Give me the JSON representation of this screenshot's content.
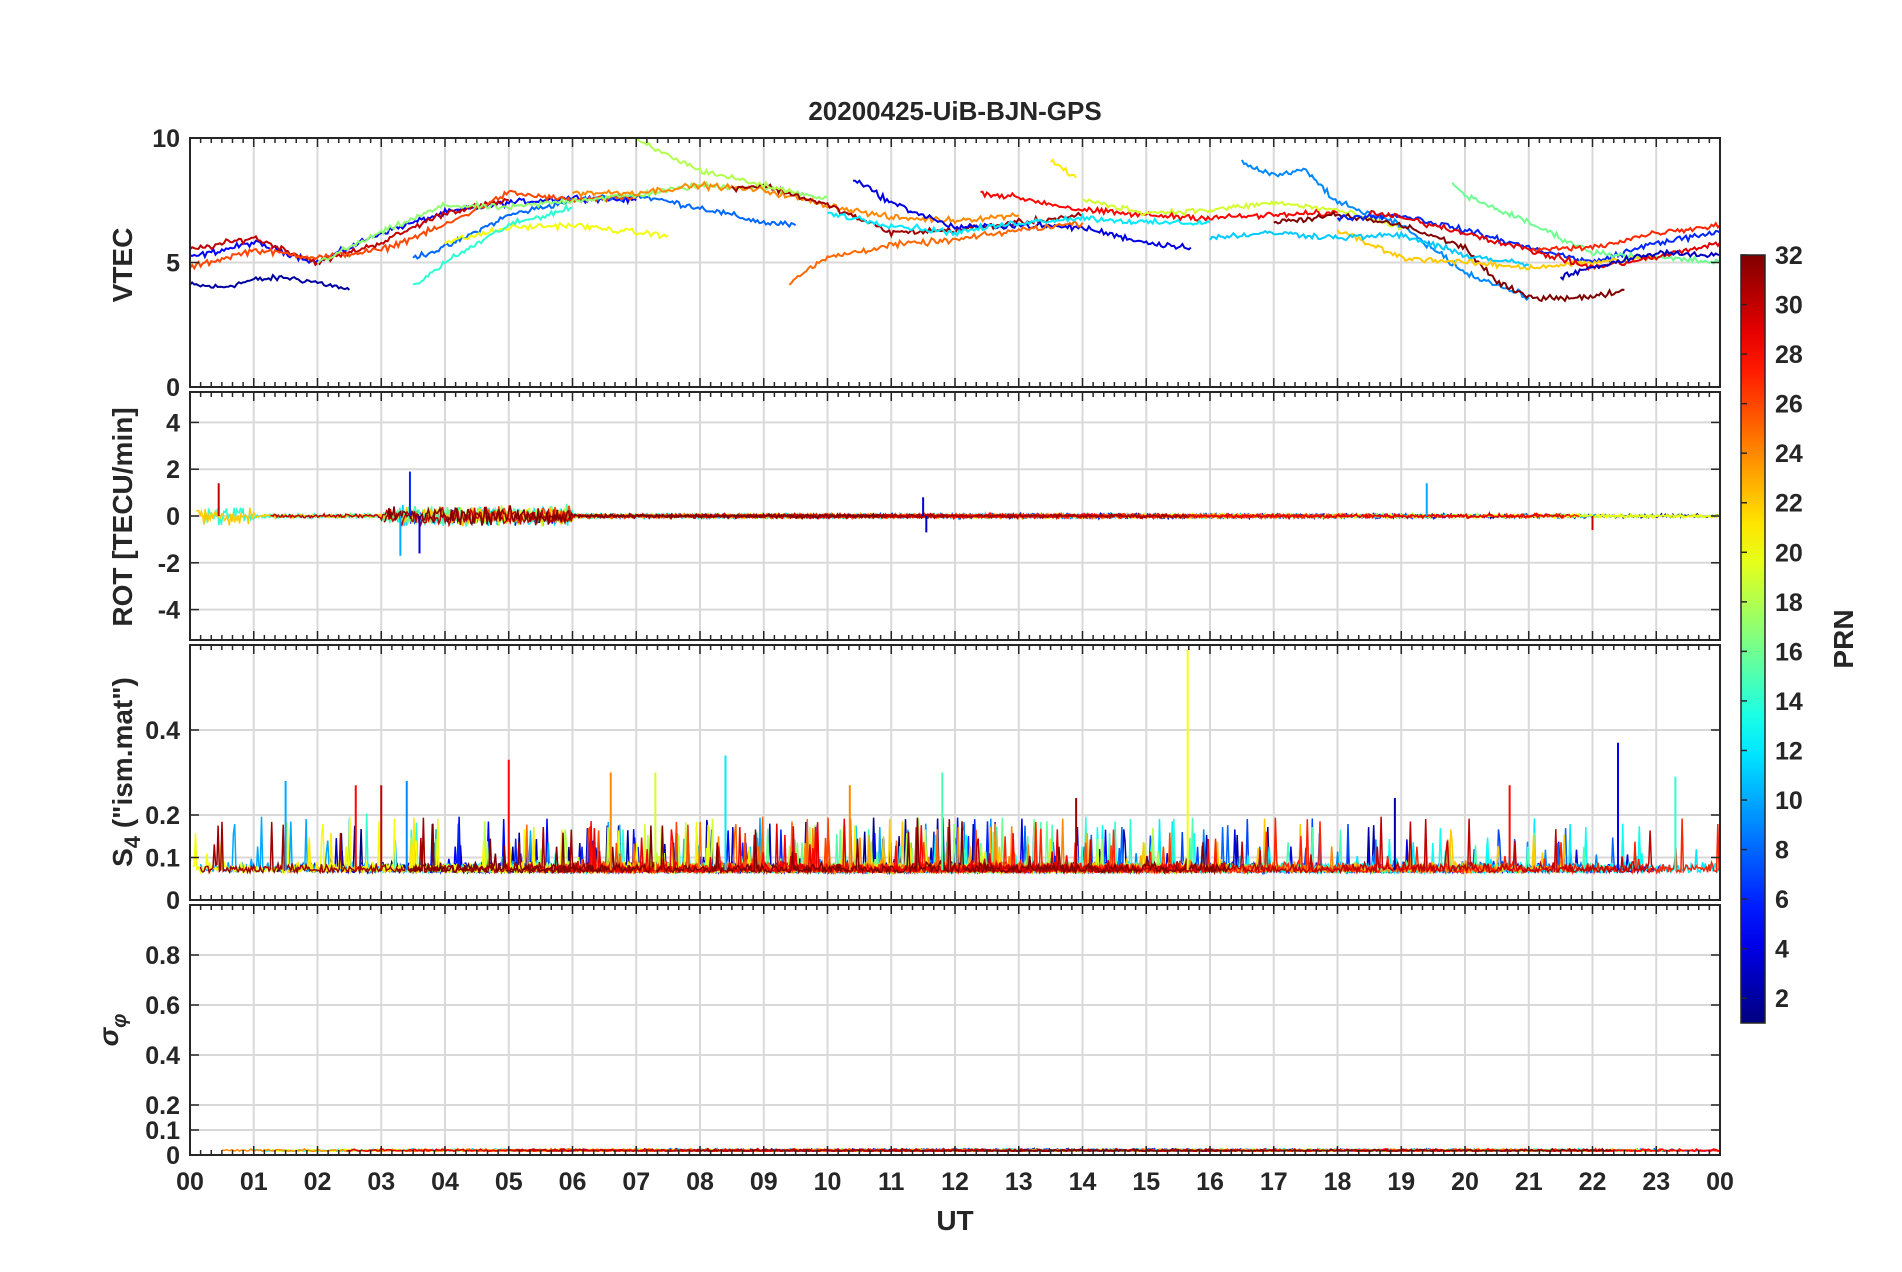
{
  "chart_data": {
    "type": "line",
    "title": "20200425-UiB-BJN-GPS",
    "xlabel": "UT",
    "x_tick_labels": [
      "00",
      "01",
      "02",
      "03",
      "04",
      "05",
      "06",
      "07",
      "08",
      "09",
      "10",
      "11",
      "12",
      "13",
      "14",
      "15",
      "16",
      "17",
      "18",
      "19",
      "20",
      "21",
      "22",
      "23",
      "00"
    ],
    "xlim": [
      0,
      24
    ],
    "grid": true,
    "colorbar": {
      "label": "PRN",
      "range": [
        1,
        32
      ],
      "tick_values": [
        2,
        4,
        6,
        8,
        10,
        12,
        14,
        16,
        18,
        20,
        22,
        24,
        26,
        28,
        30,
        32
      ],
      "tick_labels": [
        "2",
        "4",
        "6",
        "8",
        "10",
        "12",
        "14",
        "16",
        "18",
        "20",
        "22",
        "24",
        "26",
        "28",
        "30",
        "32"
      ],
      "colormap": "jet"
    },
    "panels": [
      {
        "id": "vtec",
        "ylabel": "VTEC",
        "ylim": [
          0,
          10
        ],
        "y_ticks": [
          0,
          5,
          10
        ],
        "y_tick_labels": [
          "0",
          "5",
          "10"
        ],
        "series_trend": [
          {
            "prn": 2,
            "x": [
              0,
              0.5,
              1,
              1.5,
              2,
              2.5
            ],
            "y": [
              4.1,
              4.0,
              4.3,
              4.4,
              4.2,
              3.9
            ]
          },
          {
            "prn": 5,
            "x": [
              0,
              1,
              2,
              3,
              4,
              5,
              6,
              7
            ],
            "y": [
              5.2,
              5.8,
              5.0,
              6.2,
              7.0,
              7.4,
              7.6,
              7.5
            ]
          },
          {
            "prn": 8,
            "x": [
              3.5,
              4,
              5,
              6,
              7,
              8,
              9,
              9.5
            ],
            "y": [
              5.2,
              5.6,
              6.9,
              7.5,
              7.7,
              7.2,
              6.6,
              6.5
            ]
          },
          {
            "prn": 30,
            "x": [
              0,
              1,
              2,
              3,
              4,
              5
            ],
            "y": [
              5.5,
              6.0,
              5.0,
              5.8,
              7.0,
              7.5
            ]
          },
          {
            "prn": 26,
            "x": [
              0,
              1,
              2,
              3,
              4,
              5,
              6,
              7
            ],
            "y": [
              4.8,
              5.5,
              5.2,
              5.5,
              6.5,
              7.8,
              7.5,
              7.6
            ]
          },
          {
            "prn": 17,
            "x": [
              2,
              3,
              4,
              5,
              6,
              7,
              8,
              9,
              10
            ],
            "y": [
              5.0,
              6.2,
              7.3,
              7.2,
              7.5,
              7.7,
              8.1,
              8.0,
              7.6
            ]
          },
          {
            "prn": 20,
            "x": [
              4,
              5,
              6,
              7,
              7.5
            ],
            "y": [
              5.8,
              6.4,
              6.5,
              6.2,
              6.1
            ]
          },
          {
            "prn": 14,
            "x": [
              3.5,
              4,
              5,
              6
            ],
            "y": [
              4.0,
              5.0,
              6.5,
              7.2
            ]
          },
          {
            "prn": 24,
            "x": [
              6,
              7,
              8,
              9,
              10,
              11,
              12,
              13
            ],
            "y": [
              7.8,
              7.8,
              8.1,
              7.9,
              7.3,
              6.8,
              6.7,
              6.9
            ]
          },
          {
            "prn": 31,
            "x": [
              8.5,
              9,
              10,
              11,
              12,
              13,
              14
            ],
            "y": [
              8.0,
              8.1,
              7.3,
              6.2,
              6.3,
              6.6,
              6.9
            ]
          },
          {
            "prn": 18,
            "x": [
              7,
              7.5,
              8,
              9,
              9.5
            ],
            "y": [
              9.9,
              9.3,
              8.7,
              8.1,
              7.8
            ]
          },
          {
            "prn": 4,
            "x": [
              10.4,
              11,
              12,
              13,
              14,
              15,
              15.7
            ],
            "y": [
              8.4,
              7.4,
              6.4,
              6.5,
              6.4,
              5.8,
              5.6
            ]
          },
          {
            "prn": 25,
            "x": [
              9.4,
              10,
              11,
              12,
              13,
              14
            ],
            "y": [
              4.2,
              5.2,
              5.7,
              5.9,
              6.3,
              6.6
            ]
          },
          {
            "prn": 28,
            "x": [
              12.4,
              13,
              14,
              15,
              16,
              17,
              18
            ],
            "y": [
              7.8,
              7.6,
              7.1,
              6.9,
              6.8,
              6.9,
              7.0
            ]
          },
          {
            "prn": 12,
            "x": [
              10,
              11,
              12,
              13,
              14,
              15,
              16
            ],
            "y": [
              7.0,
              6.5,
              6.2,
              6.6,
              6.8,
              6.6,
              6.6
            ]
          },
          {
            "prn": 21,
            "x": [
              13.5,
              13.9
            ],
            "y": [
              9.1,
              8.4
            ]
          },
          {
            "prn": 19,
            "x": [
              14,
              15,
              16,
              17,
              18,
              19
            ],
            "y": [
              7.5,
              7.0,
              7.1,
              7.4,
              7.1,
              6.4
            ]
          },
          {
            "prn": 9,
            "x": [
              16.5,
              17,
              17.5,
              18,
              19,
              20,
              21
            ],
            "y": [
              9.0,
              8.5,
              8.7,
              7.4,
              6.5,
              4.6,
              3.6
            ]
          },
          {
            "prn": 32,
            "x": [
              17,
              18,
              19,
              20,
              20.5,
              21,
              22,
              22.5
            ],
            "y": [
              6.6,
              6.9,
              6.5,
              5.6,
              4.2,
              3.6,
              3.6,
              3.9
            ]
          },
          {
            "prn": 6,
            "x": [
              18,
              19,
              20,
              21,
              22,
              23,
              24
            ],
            "y": [
              6.8,
              6.9,
              6.3,
              5.6,
              5.0,
              5.8,
              6.2
            ]
          },
          {
            "prn": 16,
            "x": [
              19.8,
              20,
              21,
              22,
              23,
              24
            ],
            "y": [
              8.2,
              7.7,
              6.6,
              5.4,
              5.2,
              5.0
            ]
          },
          {
            "prn": 22,
            "x": [
              18,
              19,
              20,
              21,
              22,
              23
            ],
            "y": [
              6.3,
              5.2,
              5.0,
              4.8,
              5.0,
              5.2
            ]
          },
          {
            "prn": 27,
            "x": [
              21,
              22,
              23,
              24
            ],
            "y": [
              5.5,
              5.6,
              6.2,
              6.5
            ]
          },
          {
            "prn": 11,
            "x": [
              16,
              17,
              18,
              19,
              20,
              21
            ],
            "y": [
              6.0,
              6.2,
              6.0,
              6.1,
              5.3,
              4.9
            ]
          },
          {
            "prn": 29,
            "x": [
              18.5,
              19,
              20,
              21,
              22,
              23,
              24
            ],
            "y": [
              7.0,
              6.8,
              6.2,
              5.5,
              4.8,
              5.2,
              5.8
            ]
          },
          {
            "prn": 3,
            "x": [
              21.5,
              22,
              23,
              24
            ],
            "y": [
              4.4,
              4.8,
              5.4,
              5.3
            ]
          }
        ]
      },
      {
        "id": "rot",
        "ylabel": "ROT [TECU/min]",
        "ylim": [
          -5.3,
          5.3
        ],
        "y_ticks": [
          -4,
          -2,
          0,
          2,
          4
        ],
        "y_tick_labels": [
          "-4",
          "-2",
          "0",
          "2",
          "4"
        ],
        "noise_description": "amplitude ~0.8 for 0-1h and 3-6h; ~0.15 elsewhere",
        "spikes": [
          {
            "x": 0.45,
            "y": 1.4,
            "prn": 30
          },
          {
            "x": 3.45,
            "y": 1.9,
            "prn": 6
          },
          {
            "x": 3.3,
            "y": -1.7,
            "prn": 10
          },
          {
            "x": 3.6,
            "y": -1.6,
            "prn": 4
          },
          {
            "x": 11.5,
            "y": 0.8,
            "prn": 4
          },
          {
            "x": 11.55,
            "y": -0.7,
            "prn": 3
          },
          {
            "x": 19.4,
            "y": 1.4,
            "prn": 10
          },
          {
            "x": 22,
            "y": -0.6,
            "prn": 30
          }
        ]
      },
      {
        "id": "s4",
        "ylabel": "S4 (\"ism.mat\")",
        "ylim": [
          0,
          0.6
        ],
        "y_ticks": [
          0,
          0.1,
          0.2,
          0.4
        ],
        "y_tick_labels": [
          "0",
          "0.1",
          "0.2",
          "0.4"
        ],
        "noise_description": "baseline 0.05-0.12 with bursts to 0.2-0.3",
        "spikes": [
          {
            "x": 15.65,
            "y": 0.59,
            "prn": 20
          },
          {
            "x": 5.0,
            "y": 0.33,
            "prn": 28
          },
          {
            "x": 22.4,
            "y": 0.37,
            "prn": 5
          },
          {
            "x": 8.4,
            "y": 0.34,
            "prn": 12
          },
          {
            "x": 6.6,
            "y": 0.3,
            "prn": 24
          },
          {
            "x": 7.3,
            "y": 0.3,
            "prn": 19
          },
          {
            "x": 3.4,
            "y": 0.28,
            "prn": 9
          },
          {
            "x": 1.5,
            "y": 0.28,
            "prn": 10
          },
          {
            "x": 2.6,
            "y": 0.27,
            "prn": 28
          },
          {
            "x": 3.0,
            "y": 0.27,
            "prn": 30
          },
          {
            "x": 11.8,
            "y": 0.3,
            "prn": 15
          },
          {
            "x": 10.35,
            "y": 0.27,
            "prn": 24
          },
          {
            "x": 23.3,
            "y": 0.29,
            "prn": 14
          },
          {
            "x": 18.9,
            "y": 0.24,
            "prn": 2
          },
          {
            "x": 20.7,
            "y": 0.27,
            "prn": 28
          },
          {
            "x": 13.9,
            "y": 0.24,
            "prn": 31
          }
        ]
      },
      {
        "id": "sigma_phi",
        "ylabel": "σφ",
        "ylim": [
          0,
          1
        ],
        "y_ticks": [
          0,
          0.1,
          0.2,
          0.4,
          0.6,
          0.8
        ],
        "y_tick_labels": [
          "0",
          "0.1",
          "0.2",
          "0.4",
          "0.6",
          "0.8"
        ],
        "noise_description": "values ~0.01-0.04 throughout"
      }
    ]
  }
}
